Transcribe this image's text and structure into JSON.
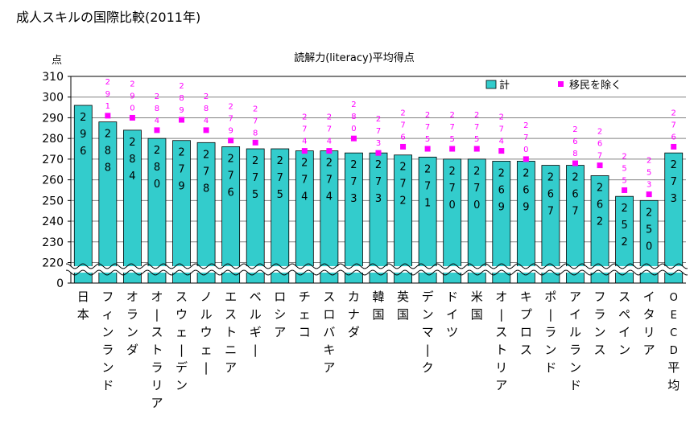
{
  "page_title": "成人スキルの国際比較(2011年)",
  "chart_data": {
    "type": "bar",
    "title": "読解力(literacy)平均得点",
    "ylabel": "点",
    "ylim": [
      210,
      310
    ],
    "axis_broken": true,
    "axis_break_range": [
      0,
      220
    ],
    "yticks": [
      0,
      220,
      230,
      240,
      250,
      260,
      270,
      280,
      290,
      300,
      310
    ],
    "ytick_labels": [
      "0",
      "220",
      "230",
      "240",
      "250",
      "260",
      "270",
      "280",
      "290",
      "300",
      "310"
    ],
    "grid": true,
    "legend_position": "top-right",
    "bar_color": "#33CCCC",
    "marker_color": "#FF00FF",
    "categories": [
      "日本",
      "フィンランド",
      "オランダ",
      "オーストラリア",
      "スウェーデン",
      "ノルウェー",
      "エストニア",
      "ベルギー",
      "ロシア",
      "チェコ",
      "スロバキア",
      "カナダ",
      "韓国",
      "英国",
      "デンマーク",
      "ドイツ",
      "米国",
      "オーストリア",
      "キプロス",
      "ポーランド",
      "アイルランド",
      "フランス",
      "スペイン",
      "イタリア",
      "OECD平均"
    ],
    "series": [
      {
        "name": "計",
        "mark": "bar",
        "values": [
          296,
          288,
          284,
          280,
          279,
          278,
          276,
          275,
          275,
          274,
          274,
          273,
          273,
          272,
          271,
          270,
          270,
          269,
          269,
          267,
          267,
          262,
          252,
          250,
          273
        ],
        "labels": [
          "296",
          "288",
          "284",
          "280",
          "279",
          "278",
          "276",
          "275",
          "275",
          "274",
          "274",
          "273",
          "273",
          "272",
          "271",
          "270",
          "270",
          "269",
          "269",
          "267",
          "267",
          "262",
          "252",
          "250",
          "273"
        ]
      },
      {
        "name": "移民を除く",
        "mark": "square",
        "values": [
          null,
          291,
          290,
          284,
          289,
          284,
          279,
          278,
          null,
          274,
          274,
          280,
          273,
          276,
          275,
          275,
          275,
          274,
          270,
          null,
          268,
          267,
          255,
          253,
          276
        ],
        "labels": [
          null,
          "291",
          "290",
          "284",
          "289",
          "284",
          "279",
          "278",
          null,
          "274",
          "274",
          "280",
          "273",
          "276",
          "275",
          "275",
          "275",
          "274",
          "270",
          null,
          "268",
          "267",
          "255",
          "253",
          "276"
        ]
      }
    ]
  }
}
